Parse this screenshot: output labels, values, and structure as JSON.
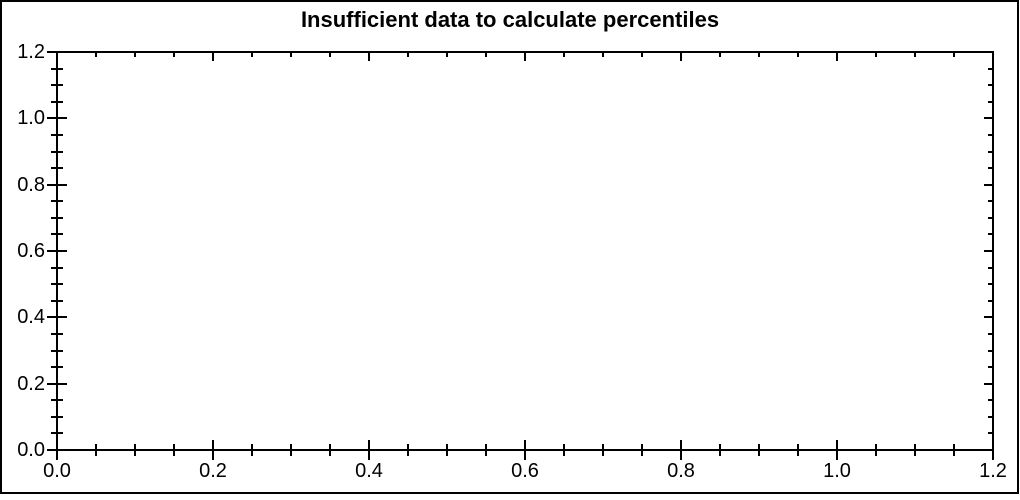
{
  "window": {
    "background_color": "#ffffff",
    "border_color": "#000000"
  },
  "chart_data": {
    "type": "line",
    "title": "Insufficient data to calculate percentiles",
    "series": [],
    "plot_area_empty": true,
    "grid": false,
    "legend": false,
    "xlabel": "",
    "ylabel": "",
    "x_axis": {
      "min": 0.0,
      "max": 1.2,
      "major_ticks": [
        0.0,
        0.2,
        0.4,
        0.6,
        0.8,
        1.0,
        1.2
      ],
      "tick_labels": [
        "0.0",
        "0.2",
        "0.4",
        "0.6",
        "0.8",
        "1.0",
        "1.2"
      ],
      "minor_tick_step": 0.05,
      "tick_style": "crossing on bottom axis, inward on top axis"
    },
    "y_axis": {
      "min": 0.0,
      "max": 1.2,
      "major_ticks": [
        0.0,
        0.2,
        0.4,
        0.6,
        0.8,
        1.0,
        1.2
      ],
      "tick_labels": [
        "0.0",
        "0.2",
        "0.4",
        "0.6",
        "0.8",
        "1.0",
        "1.2"
      ],
      "minor_tick_step": 0.05,
      "tick_style": "crossing on left axis, inward on right axis"
    },
    "colors": {
      "axis": "#000000",
      "text": "#000000",
      "plot_background": "#ffffff"
    }
  }
}
